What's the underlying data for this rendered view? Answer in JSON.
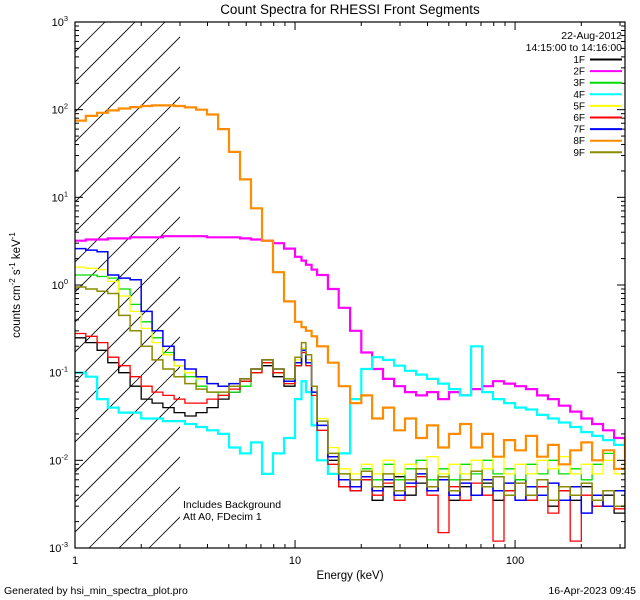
{
  "title": "Count Spectra for RHESSI Front Segments",
  "footer": {
    "left": "Generated by hsi_min_spectra_plot.pro",
    "right": "16-Apr-2023 09:45"
  },
  "annotations": {
    "line1": "Includes Background",
    "line2": "Att A0, FDecim 1"
  },
  "legend": {
    "date_line1": "22-Aug-2012",
    "date_line2": "14:15:00 to 14:16:00",
    "position": "top-right",
    "items": [
      {
        "label": "1F",
        "color": "#000000"
      },
      {
        "label": "2F",
        "color": "#ff00ff"
      },
      {
        "label": "3F",
        "color": "#00dd00"
      },
      {
        "label": "4F",
        "color": "#00ffff"
      },
      {
        "label": "5F",
        "color": "#ffff00"
      },
      {
        "label": "6F",
        "color": "#ff0000"
      },
      {
        "label": "7F",
        "color": "#0000ff"
      },
      {
        "label": "8F",
        "color": "#ff8c00"
      },
      {
        "label": "9F",
        "color": "#8b8b00"
      }
    ]
  },
  "chart_data": {
    "type": "line",
    "title": "Count Spectra for RHESSI Front Segments",
    "xlabel": "Energy (keV)",
    "ylabel_parts": [
      {
        "t": "counts cm",
        "sup": false
      },
      {
        "t": "-2",
        "sup": true
      },
      {
        "t": " s",
        "sup": false
      },
      {
        "t": "-1",
        "sup": true
      },
      {
        "t": " keV",
        "sup": false
      },
      {
        "t": "-1",
        "sup": true
      }
    ],
    "xscale": "log",
    "yscale": "log",
    "xlim": [
      1,
      316
    ],
    "ylim": [
      0.001,
      1000
    ],
    "grid": false,
    "x_ticks": [
      {
        "value": 1,
        "label": "1"
      },
      {
        "value": 10,
        "label": "10"
      },
      {
        "value": 100,
        "label": "100"
      }
    ],
    "y_tick_exponents": [
      -3,
      -2,
      -1,
      0,
      1,
      2,
      3
    ],
    "excluded_region": {
      "from": 1,
      "to": 3,
      "style": "hatched"
    },
    "x": [
      1.0,
      1.12,
      1.26,
      1.41,
      1.58,
      1.78,
      2.0,
      2.24,
      2.51,
      2.82,
      3.16,
      3.55,
      3.98,
      4.47,
      5.01,
      5.62,
      6.31,
      7.08,
      7.94,
      8.91,
      10.0,
      10.7,
      11.2,
      11.9,
      12.6,
      14.1,
      15.8,
      17.8,
      20.0,
      22.4,
      25.1,
      28.2,
      31.6,
      35.5,
      39.8,
      44.7,
      50.1,
      56.2,
      63.1,
      70.8,
      79.4,
      89.1,
      100,
      112,
      126,
      141,
      158,
      178,
      200,
      224,
      251,
      282,
      316
    ],
    "series": [
      {
        "name": "1F",
        "color": "#000000",
        "width": 1.3,
        "values": [
          0.25,
          0.22,
          0.18,
          0.13,
          0.1,
          0.07,
          0.05,
          0.045,
          0.04,
          0.035,
          0.032,
          0.035,
          0.04,
          0.05,
          0.06,
          0.08,
          0.11,
          0.12,
          0.09,
          0.07,
          0.12,
          0.19,
          0.14,
          0.06,
          0.025,
          0.01,
          0.005,
          0.0045,
          0.006,
          0.0035,
          0.005,
          0.0065,
          0.004,
          0.0055,
          0.0045,
          0.006,
          0.0035,
          0.005,
          0.004,
          0.0055,
          0.0035,
          0.0045,
          0.006,
          0.0035,
          0.005,
          0.003,
          0.0045,
          0.0035,
          0.005,
          0.003,
          0.004,
          0.0025,
          0.0035
        ]
      },
      {
        "name": "2F",
        "color": "#ff00ff",
        "width": 2.2,
        "values": [
          3.2,
          3.3,
          3.3,
          3.4,
          3.4,
          3.5,
          3.5,
          3.5,
          3.6,
          3.6,
          3.6,
          3.6,
          3.5,
          3.5,
          3.5,
          3.4,
          3.3,
          3.2,
          3.0,
          2.6,
          2.1,
          1.9,
          1.7,
          1.5,
          1.3,
          0.9,
          0.55,
          0.3,
          0.17,
          0.11,
          0.085,
          0.07,
          0.06,
          0.055,
          0.06,
          0.05,
          0.06,
          0.055,
          0.065,
          0.07,
          0.08,
          0.075,
          0.07,
          0.065,
          0.055,
          0.05,
          0.042,
          0.036,
          0.03,
          0.026,
          0.022,
          0.018,
          0.015
        ]
      },
      {
        "name": "3F",
        "color": "#00dd00",
        "width": 1.3,
        "values": [
          1.3,
          1.3,
          1.25,
          1.2,
          0.9,
          0.6,
          0.38,
          0.25,
          0.17,
          0.12,
          0.09,
          0.07,
          0.06,
          0.055,
          0.06,
          0.07,
          0.1,
          0.13,
          0.1,
          0.075,
          0.12,
          0.17,
          0.13,
          0.06,
          0.025,
          0.012,
          0.007,
          0.006,
          0.008,
          0.006,
          0.009,
          0.006,
          0.008,
          0.01,
          0.006,
          0.008,
          0.006,
          0.009,
          0.007,
          0.01,
          0.007,
          0.008,
          0.006,
          0.009,
          0.007,
          0.01,
          0.007,
          0.008,
          0.006,
          0.009,
          0.012,
          0.008,
          0.015
        ]
      },
      {
        "name": "4F",
        "color": "#00ffff",
        "width": 2.2,
        "values": [
          0.1,
          0.09,
          0.05,
          0.04,
          0.035,
          0.035,
          0.03,
          0.03,
          0.028,
          0.028,
          0.026,
          0.024,
          0.022,
          0.02,
          0.014,
          0.012,
          0.016,
          0.007,
          0.012,
          0.018,
          0.05,
          0.08,
          0.06,
          0.025,
          0.01,
          0.007,
          0.012,
          0.05,
          0.11,
          0.15,
          0.14,
          0.12,
          0.105,
          0.095,
          0.085,
          0.075,
          0.065,
          0.055,
          0.2,
          0.06,
          0.05,
          0.045,
          0.04,
          0.038,
          0.033,
          0.03,
          0.027,
          0.024,
          0.021,
          0.019,
          0.017,
          0.015,
          0.013
        ]
      },
      {
        "name": "5F",
        "color": "#ffff00",
        "width": 1.3,
        "values": [
          1.6,
          1.55,
          1.5,
          1.1,
          0.75,
          0.5,
          0.32,
          0.22,
          0.16,
          0.12,
          0.1,
          0.085,
          0.075,
          0.07,
          0.075,
          0.085,
          0.11,
          0.14,
          0.11,
          0.085,
          0.14,
          0.19,
          0.14,
          0.07,
          0.03,
          0.014,
          0.008,
          0.007,
          0.009,
          0.007,
          0.01,
          0.007,
          0.009,
          0.007,
          0.011,
          0.007,
          0.009,
          0.007,
          0.01,
          0.008,
          0.011,
          0.007,
          0.009,
          0.007,
          0.01,
          0.008,
          0.011,
          0.007,
          0.009,
          0.007,
          0.01,
          0.007,
          0.012
        ]
      },
      {
        "name": "6F",
        "color": "#ff0000",
        "width": 1.3,
        "values": [
          0.28,
          0.26,
          0.22,
          0.15,
          0.12,
          0.09,
          0.07,
          0.06,
          0.055,
          0.05,
          0.045,
          0.045,
          0.05,
          0.055,
          0.065,
          0.08,
          0.1,
          0.13,
          0.1,
          0.075,
          0.12,
          0.17,
          0.12,
          0.055,
          0.022,
          0.009,
          0.005,
          0.0045,
          0.006,
          0.004,
          0.0055,
          0.0035,
          0.005,
          0.0065,
          0.004,
          0.0015,
          0.005,
          0.0035,
          0.0055,
          0.004,
          0.0012,
          0.0045,
          0.0055,
          0.0035,
          0.005,
          0.0025,
          0.0045,
          0.0012,
          0.004,
          0.003,
          0.0045,
          0.0028,
          0.0038
        ]
      },
      {
        "name": "7F",
        "color": "#0000ff",
        "width": 1.5,
        "values": [
          2.6,
          2.5,
          2.4,
          1.3,
          1.2,
          1.15,
          0.5,
          0.3,
          0.2,
          0.14,
          0.11,
          0.09,
          0.075,
          0.07,
          0.075,
          0.085,
          0.11,
          0.14,
          0.11,
          0.08,
          0.13,
          0.18,
          0.13,
          0.06,
          0.025,
          0.011,
          0.006,
          0.005,
          0.0065,
          0.0045,
          0.006,
          0.004,
          0.0055,
          0.007,
          0.0045,
          0.006,
          0.004,
          0.0055,
          0.004,
          0.006,
          0.0045,
          0.0055,
          0.0035,
          0.005,
          0.004,
          0.0055,
          0.0035,
          0.005,
          0.0025,
          0.004,
          0.003,
          0.0045,
          0.0035
        ]
      },
      {
        "name": "8F",
        "color": "#ff8c00",
        "width": 2.2,
        "values": [
          75,
          85,
          92,
          98,
          103,
          107,
          110,
          112,
          112,
          110,
          106,
          100,
          88,
          60,
          33,
          16,
          7.5,
          3.2,
          1.4,
          0.65,
          0.38,
          0.33,
          0.3,
          0.26,
          0.2,
          0.13,
          0.07,
          0.045,
          0.055,
          0.03,
          0.04,
          0.022,
          0.03,
          0.018,
          0.025,
          0.014,
          0.02,
          0.026,
          0.014,
          0.02,
          0.011,
          0.017,
          0.013,
          0.019,
          0.011,
          0.015,
          0.009,
          0.013,
          0.016,
          0.01,
          0.013,
          0.008,
          0.018
        ]
      },
      {
        "name": "9F",
        "color": "#8b8b00",
        "width": 1.5,
        "values": [
          0.95,
          0.9,
          0.85,
          0.8,
          0.45,
          0.3,
          0.2,
          0.14,
          0.11,
          0.09,
          0.075,
          0.065,
          0.06,
          0.06,
          0.07,
          0.085,
          0.11,
          0.14,
          0.11,
          0.085,
          0.15,
          0.22,
          0.16,
          0.07,
          0.028,
          0.012,
          0.007,
          0.006,
          0.0075,
          0.005,
          0.007,
          0.0045,
          0.006,
          0.008,
          0.005,
          0.0065,
          0.0045,
          0.006,
          0.0075,
          0.005,
          0.0065,
          0.004,
          0.0055,
          0.004,
          0.006,
          0.0035,
          0.005,
          0.004,
          0.0055,
          0.0035,
          0.0045,
          0.003,
          0.004
        ]
      }
    ]
  }
}
